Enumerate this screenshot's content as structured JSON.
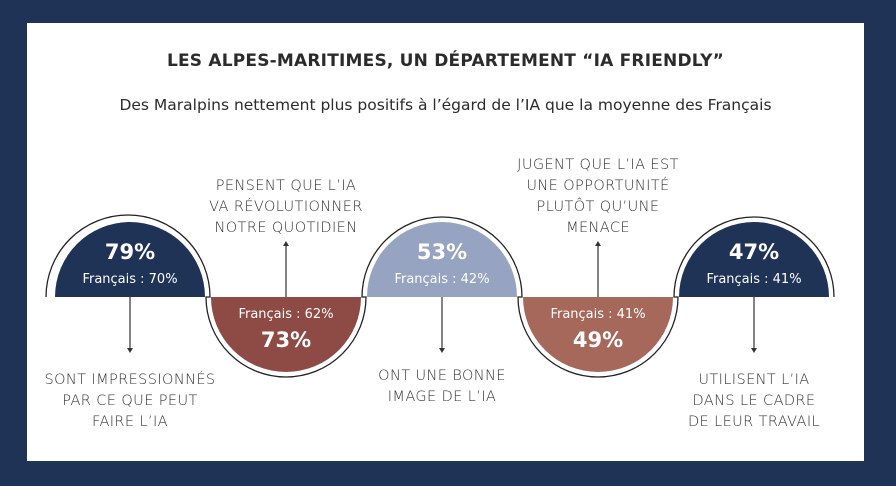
{
  "header": {
    "title": "LES ALPES-MARITIMES, UN DÉPARTEMENT “IA FRIENDLY”",
    "subtitle": "Des Maralpins nettement plus positifs à l’égard de l’IA que la moyenne des Français"
  },
  "colors": {
    "frame": "#1f3357",
    "navy": "#1f3357",
    "dark_red": "#8e4a45",
    "light_blue": "#96a4c1",
    "terracotta": "#a5685b"
  },
  "stats": [
    {
      "value": "79%",
      "france": "Français : 70%",
      "orientation": "up",
      "color": "#1f3357",
      "label_lines": [
        "SONT IMPRESSIONNÉS",
        "PAR CE QUE PEUT",
        "FAIRE L’IA"
      ]
    },
    {
      "value": "73%",
      "france": "Français : 62%",
      "orientation": "down",
      "color": "#8e4a45",
      "label_lines": [
        "PENSENT QUE L’IA",
        "VA RÉVOLUTIONNER",
        "NOTRE QUOTIDIEN"
      ]
    },
    {
      "value": "53%",
      "france": "Français : 42%",
      "orientation": "up",
      "color": "#96a4c1",
      "label_lines": [
        "ONT UNE BONNE",
        "IMAGE DE L’IA"
      ]
    },
    {
      "value": "49%",
      "france": "Français : 41%",
      "orientation": "down",
      "color": "#a5685b",
      "label_lines": [
        "JUGENT QUE L’IA EST",
        "UNE OPPORTUNITÉ",
        "PLUTÔT QU’UNE",
        "MENACE"
      ]
    },
    {
      "value": "47%",
      "france": "Français : 41%",
      "orientation": "up",
      "color": "#1f3357",
      "label_lines": [
        "UTILISENT L’IA",
        "DANS LE CADRE",
        "DE LEUR TRAVAIL"
      ]
    }
  ]
}
